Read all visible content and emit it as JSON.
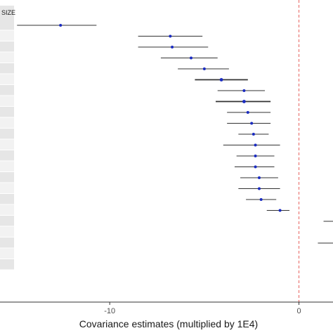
{
  "chart_data": {
    "type": "forest",
    "xlabel": "Covariance estimates (multiplied by 1E4)",
    "xlim": [
      -15.8,
      1.8
    ],
    "x_ticks": [
      -10,
      0
    ],
    "x_tick_labels": [
      "-10",
      "0"
    ],
    "reference_line": {
      "x": 0,
      "style": "dashed",
      "color": "#e8625e"
    },
    "row_labels": [
      "SIZE"
    ],
    "rows": [
      {
        "est": -12.6,
        "lo": -14.9,
        "hi": -10.7,
        "bold": false
      },
      {
        "est": -6.8,
        "lo": -8.5,
        "hi": -5.1,
        "bold": false
      },
      {
        "est": -6.7,
        "lo": -8.5,
        "hi": -4.8,
        "bold": false
      },
      {
        "est": -5.7,
        "lo": -7.3,
        "hi": -4.3,
        "bold": false
      },
      {
        "est": -5.0,
        "lo": -6.4,
        "hi": -3.7,
        "bold": false
      },
      {
        "est": -4.1,
        "lo": -5.5,
        "hi": -2.7,
        "bold": true
      },
      {
        "est": -2.9,
        "lo": -4.3,
        "hi": -1.8,
        "bold": false
      },
      {
        "est": -2.9,
        "lo": -4.4,
        "hi": -1.5,
        "bold": true
      },
      {
        "est": -2.7,
        "lo": -3.8,
        "hi": -1.5,
        "bold": false
      },
      {
        "est": -2.5,
        "lo": -3.8,
        "hi": -1.5,
        "bold": false
      },
      {
        "est": -2.4,
        "lo": -3.2,
        "hi": -1.6,
        "bold": false
      },
      {
        "est": -2.3,
        "lo": -4.0,
        "hi": -1.0,
        "bold": false
      },
      {
        "est": -2.3,
        "lo": -3.3,
        "hi": -1.3,
        "bold": false
      },
      {
        "est": -2.3,
        "lo": -3.4,
        "hi": -1.3,
        "bold": false
      },
      {
        "est": -2.1,
        "lo": -3.1,
        "hi": -1.1,
        "bold": false
      },
      {
        "est": -2.1,
        "lo": -3.2,
        "hi": -1.0,
        "bold": false
      },
      {
        "est": -2.0,
        "lo": -2.8,
        "hi": -1.2,
        "bold": false
      },
      {
        "est": -1.0,
        "lo": -1.7,
        "hi": -0.5,
        "bold": false
      },
      {
        "est": null,
        "lo": 1.3,
        "hi": null,
        "bold": false
      },
      {
        "est": null,
        "lo": null,
        "hi": null,
        "bold": false
      },
      {
        "est": null,
        "lo": 1.0,
        "hi": null,
        "bold": false
      },
      {
        "est": null,
        "lo": null,
        "hi": null,
        "bold": false
      },
      {
        "est": null,
        "lo": null,
        "hi": null,
        "bold": false
      }
    ],
    "colors": {
      "point": "#1a2bc0",
      "interval": "#333333",
      "strip": "#e6e6e6",
      "strip_alt": "#f2f2f2",
      "axis": "#333333"
    }
  }
}
